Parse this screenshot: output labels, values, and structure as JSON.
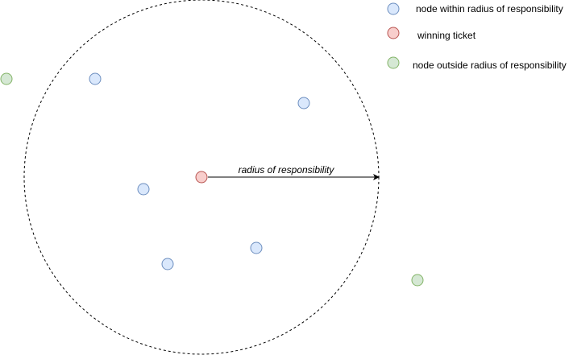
{
  "colors": {
    "within_fill": "#dae8fc",
    "within_stroke": "#6c8ebf",
    "winning_fill": "#f8cecc",
    "winning_stroke": "#b85450",
    "outside_fill": "#d5e8d4",
    "outside_stroke": "#82b366",
    "boundary_stroke": "#000000"
  },
  "legend": {
    "within_label": "node within radius of responsibility",
    "winning_label": "winning ticket",
    "outside_label": "node outside radius of responsibility"
  },
  "diagram": {
    "radius_label": "radius of responsibility",
    "nodes_within_count": 6,
    "nodes_outside_count": 2
  }
}
